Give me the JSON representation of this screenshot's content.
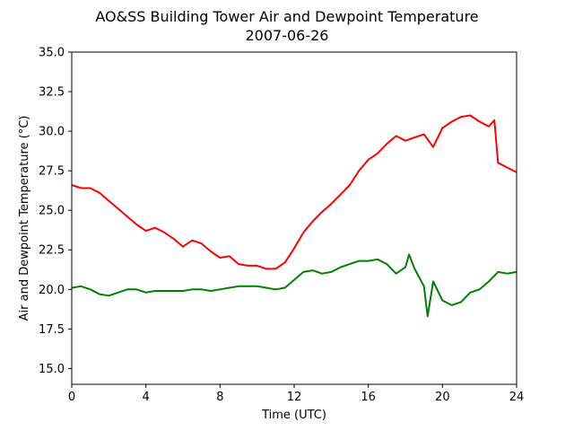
{
  "chart_data": {
    "type": "line",
    "title": "AO&SS Building Tower Air and Dewpoint Temperature",
    "subtitle": "2007-06-26",
    "xlabel": "Time (UTC)",
    "ylabel": "Air and Dewpoint Temperature (°C)",
    "xlim": [
      0,
      24
    ],
    "ylim": [
      14.0,
      35.0
    ],
    "xticks": [
      0,
      4,
      8,
      12,
      16,
      20,
      24
    ],
    "xtick_labels": [
      "0",
      "4",
      "8",
      "12",
      "16",
      "20",
      "24"
    ],
    "yticks": [
      15.0,
      17.5,
      20.0,
      22.5,
      25.0,
      27.5,
      30.0,
      32.5,
      35.0
    ],
    "ytick_labels": [
      "15.0",
      "17.5",
      "20.0",
      "22.5",
      "25.0",
      "27.5",
      "30.0",
      "32.5",
      "35.0"
    ],
    "grid": false,
    "series": [
      {
        "color": "#ff0000",
        "x": [
          0,
          0.5,
          1,
          1.5,
          2,
          2.5,
          3,
          3.5,
          4,
          4.5,
          5,
          5.5,
          6,
          6.5,
          7,
          7.5,
          8,
          8.5,
          9,
          9.5,
          10,
          10.5,
          11,
          11.5,
          12,
          12.5,
          13,
          13.5,
          14,
          14.5,
          15,
          15.5,
          16,
          16.5,
          17,
          17.5,
          18,
          18.5,
          19,
          19.5,
          20,
          20.5,
          21,
          21.5,
          22,
          22.5,
          22.8,
          23,
          23.5,
          24
        ],
        "y": [
          26.6,
          26.4,
          26.4,
          26.1,
          25.6,
          25.1,
          24.6,
          24.1,
          23.7,
          23.9,
          23.6,
          23.2,
          22.7,
          23.1,
          22.9,
          22.4,
          22.0,
          22.1,
          21.6,
          21.5,
          21.5,
          21.3,
          21.3,
          21.7,
          22.6,
          23.6,
          24.3,
          24.9,
          25.4,
          26.0,
          26.6,
          27.5,
          28.2,
          28.6,
          29.2,
          29.7,
          29.4,
          29.6,
          29.8,
          29.0,
          30.2,
          30.6,
          30.9,
          31.0,
          30.6,
          30.3,
          30.7,
          28.0,
          27.7,
          27.4
        ]
      },
      {
        "color": "#008000",
        "x": [
          0,
          0.5,
          1,
          1.5,
          2,
          2.5,
          3,
          3.5,
          4,
          4.5,
          5,
          5.5,
          6,
          6.5,
          7,
          7.5,
          8,
          8.5,
          9,
          9.5,
          10,
          10.5,
          11,
          11.5,
          12,
          12.5,
          13,
          13.5,
          14,
          14.5,
          15,
          15.5,
          16,
          16.5,
          17,
          17.5,
          18,
          18.2,
          18.5,
          19,
          19.2,
          19.5,
          20,
          20.5,
          21,
          21.5,
          22,
          22.5,
          23,
          23.5,
          24
        ],
        "y": [
          20.1,
          20.2,
          20.0,
          19.7,
          19.6,
          19.8,
          20.0,
          20.0,
          19.8,
          19.9,
          19.9,
          19.9,
          19.9,
          20.0,
          20.0,
          19.9,
          20.0,
          20.1,
          20.2,
          20.2,
          20.2,
          20.1,
          20.0,
          20.1,
          20.6,
          21.1,
          21.2,
          21.0,
          21.1,
          21.4,
          21.6,
          21.8,
          21.8,
          21.9,
          21.6,
          21.0,
          21.4,
          22.2,
          21.3,
          20.2,
          18.3,
          20.5,
          19.3,
          19.0,
          19.2,
          19.8,
          20.0,
          20.5,
          21.1,
          21.0,
          21.1
        ]
      }
    ]
  }
}
